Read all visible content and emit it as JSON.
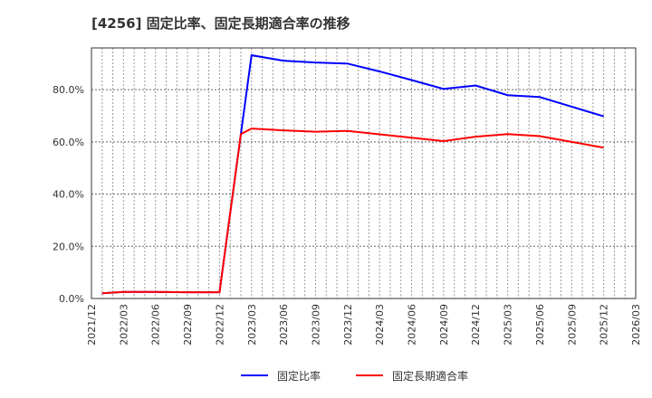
{
  "chart_data": {
    "type": "line",
    "title": "[4256]  固定比率、固定長期適合率の推移",
    "xlabel": "",
    "ylabel": "",
    "ylim": [
      0,
      96
    ],
    "yticks": [
      0,
      20,
      40,
      60,
      80
    ],
    "ytick_labels": [
      "0.0%",
      "20.0%",
      "40.0%",
      "60.0%",
      "80.0%"
    ],
    "xticks": [
      "2021/12",
      "2022/03",
      "2022/06",
      "2022/09",
      "2022/12",
      "2023/03",
      "2023/06",
      "2023/09",
      "2023/12",
      "2024/03",
      "2024/06",
      "2024/09",
      "2024/12",
      "2025/03",
      "2025/06",
      "2025/09",
      "2025/12",
      "2026/03"
    ],
    "grid": true,
    "legend_position": "bottom",
    "series": [
      {
        "name": "固定比率",
        "color": "#0000ff",
        "x": [
          "2022/01",
          "2022/03",
          "2022/06",
          "2022/09",
          "2022/12",
          "2023/03",
          "2023/06",
          "2023/09",
          "2023/12",
          "2024/03",
          "2024/06",
          "2024/09",
          "2024/12",
          "2025/03",
          "2025/06",
          "2025/09",
          "2025/12"
        ],
        "values": [
          2.0,
          2.5,
          2.5,
          2.4,
          2.4,
          93.2,
          91.1,
          90.4,
          90.0,
          87.0,
          83.7,
          80.3,
          81.6,
          77.9,
          77.2,
          73.5,
          69.8
        ]
      },
      {
        "name": "固定長期適合率",
        "color": "#ff0000",
        "x": [
          "2022/01",
          "2022/03",
          "2022/06",
          "2022/09",
          "2022/12",
          "2023/02",
          "2023/03",
          "2023/06",
          "2023/09",
          "2023/12",
          "2024/03",
          "2024/06",
          "2024/09",
          "2024/12",
          "2025/03",
          "2025/06",
          "2025/09",
          "2025/12"
        ],
        "values": [
          2.0,
          2.5,
          2.5,
          2.4,
          2.4,
          63.0,
          65.1,
          64.4,
          63.9,
          64.2,
          62.9,
          61.6,
          60.3,
          62.0,
          63.0,
          62.2,
          60.0,
          57.8
        ]
      }
    ]
  }
}
